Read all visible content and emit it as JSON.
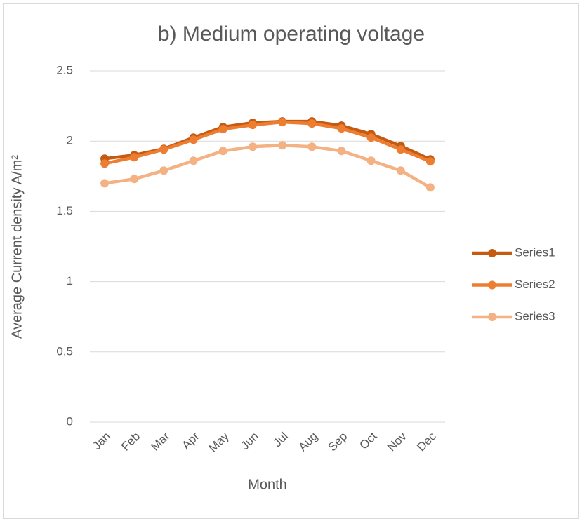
{
  "chart_data": {
    "type": "line",
    "title": "b) Medium operating voltage",
    "x_label": "Month",
    "y_label": "Average Current density A/m²",
    "categories": [
      "Jan",
      "Feb",
      "Mar",
      "Apr",
      "May",
      "Jun",
      "Jul",
      "Aug",
      "Sep",
      "Oct",
      "Nov",
      "Dec"
    ],
    "series": [
      {
        "name": "Series1",
        "color": "#c55a11",
        "values": [
          1.875,
          1.9,
          1.945,
          2.025,
          2.1,
          2.13,
          2.14,
          2.14,
          2.11,
          2.05,
          1.965,
          1.87
        ]
      },
      {
        "name": "Series2",
        "color": "#ed7d31",
        "values": [
          1.84,
          1.885,
          1.94,
          2.01,
          2.085,
          2.115,
          2.135,
          2.125,
          2.09,
          2.025,
          1.94,
          1.855
        ]
      },
      {
        "name": "Series3",
        "color": "#f4b183",
        "values": [
          1.7,
          1.73,
          1.79,
          1.86,
          1.93,
          1.96,
          1.97,
          1.96,
          1.93,
          1.86,
          1.79,
          1.67
        ]
      }
    ],
    "ylim": [
      0,
      2.5
    ],
    "yticks": [
      0,
      0.5,
      1,
      1.5,
      2,
      2.5
    ],
    "grid": true,
    "legend": "right"
  }
}
